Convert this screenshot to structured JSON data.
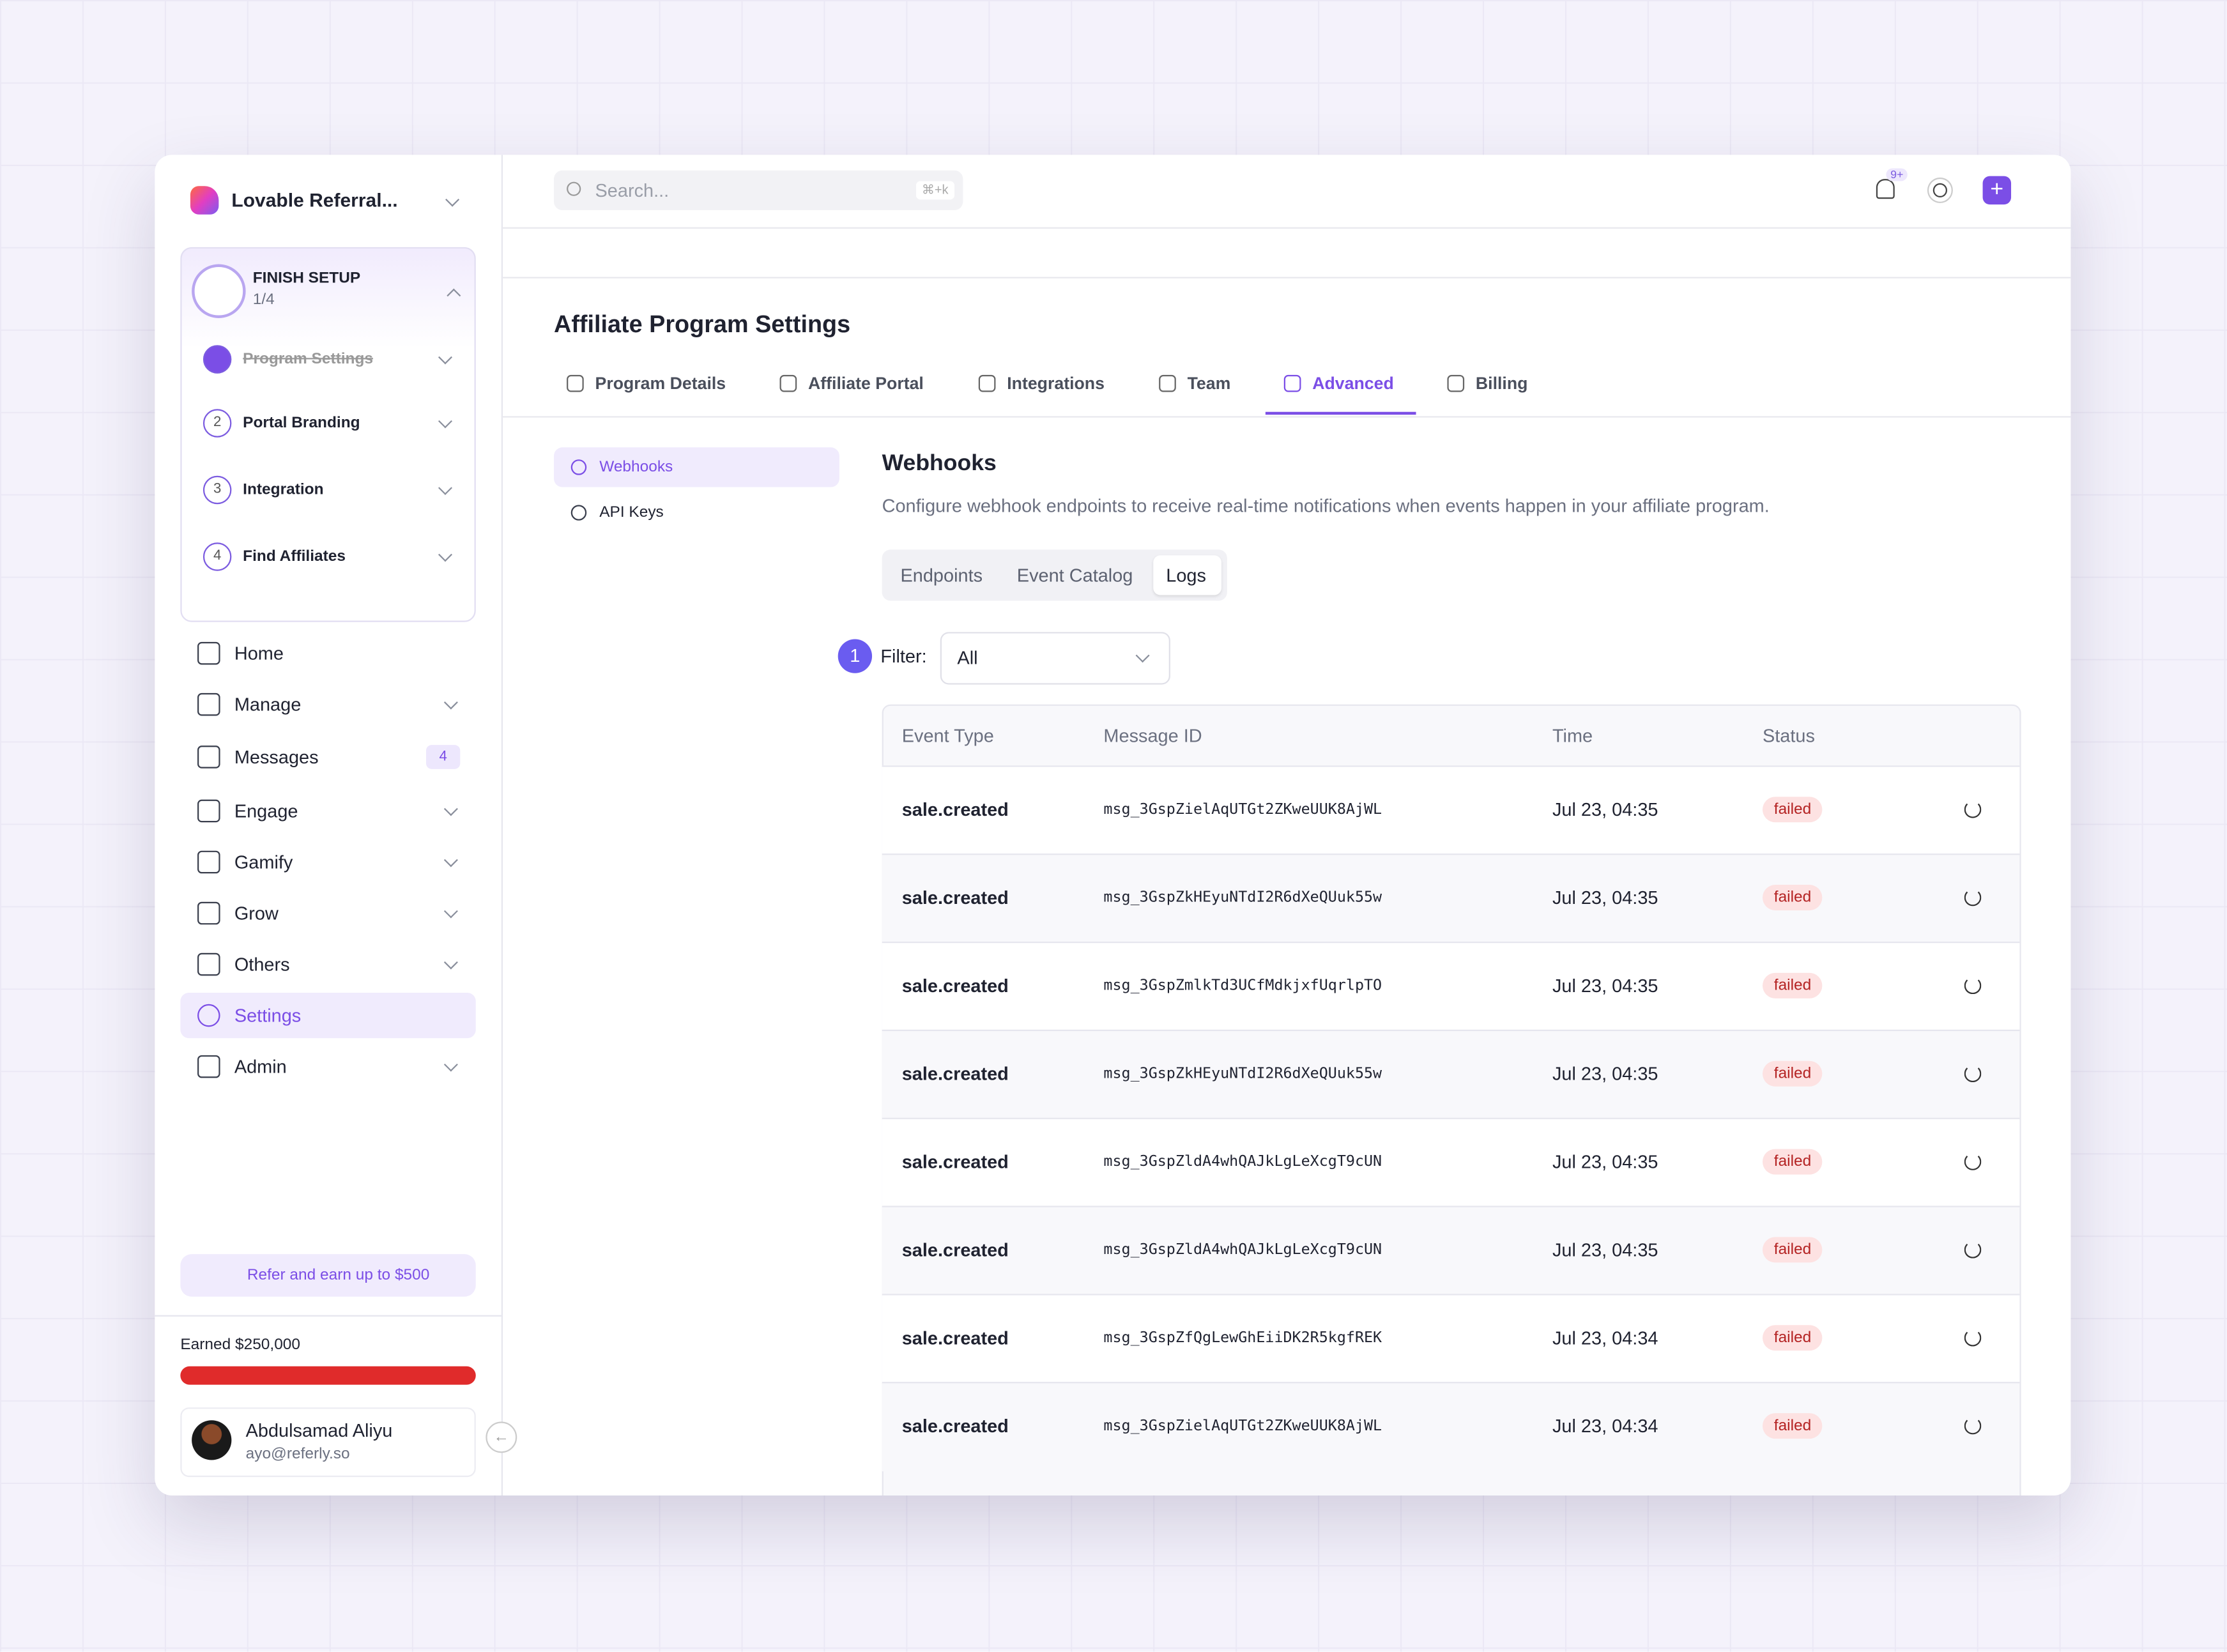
{
  "sidebar": {
    "workspace": "Lovable Referral...",
    "setup": {
      "title": "FINISH SETUP",
      "progress": "1/4",
      "steps": [
        {
          "label": "Program Settings"
        },
        {
          "number": "2",
          "label": "Portal Branding"
        },
        {
          "number": "3",
          "label": "Integration"
        },
        {
          "number": "4",
          "label": "Find Affiliates"
        }
      ]
    },
    "nav": [
      {
        "label": "Home"
      },
      {
        "label": "Manage"
      },
      {
        "label": "Messages",
        "badge": "4"
      },
      {
        "label": "Engage"
      },
      {
        "label": "Gamify"
      },
      {
        "label": "Grow"
      },
      {
        "label": "Others"
      },
      {
        "label": "Settings"
      },
      {
        "label": "Admin"
      }
    ],
    "refer": "Refer and earn up to $500",
    "earned": "Earned $250,000",
    "user": {
      "name": "Abdulsamad Aliyu",
      "email": "ayo@referly.so"
    }
  },
  "header": {
    "search": "Search...",
    "shortcut": "⌘+k",
    "notifications": "9+"
  },
  "page": {
    "title": "Affiliate Program Settings",
    "tabs": [
      "Program Details",
      "Affiliate Portal",
      "Integrations",
      "Team",
      "Advanced",
      "Billing"
    ],
    "subnav": [
      "Webhooks",
      "API Keys"
    ],
    "section": {
      "title": "Webhooks",
      "description": "Configure webhook endpoints to receive real-time notifications when events happen in your affiliate program.",
      "subtabs": [
        "Endpoints",
        "Event Catalog",
        "Logs"
      ],
      "marker": "1",
      "filter_label": "Filter:",
      "filter_value": "All"
    }
  },
  "table": {
    "columns": [
      "Event Type",
      "Message ID",
      "Time",
      "Status"
    ],
    "rows": [
      [
        "sale.created",
        "msg_3GspZielAqUTGt2ZKweUUK8AjWL",
        "Jul 23, 04:35",
        "failed"
      ],
      [
        "sale.created",
        "msg_3GspZkHEyuNTdI2R6dXeQUuk55w",
        "Jul 23, 04:35",
        "failed"
      ],
      [
        "sale.created",
        "msg_3GspZmlkTd3UCfMdkjxfUqrlpTO",
        "Jul 23, 04:35",
        "failed"
      ],
      [
        "sale.created",
        "msg_3GspZkHEyuNTdI2R6dXeQUuk55w",
        "Jul 23, 04:35",
        "failed"
      ],
      [
        "sale.created",
        "msg_3GspZldA4whQAJkLgLeXcgT9cUN",
        "Jul 23, 04:35",
        "failed"
      ],
      [
        "sale.created",
        "msg_3GspZldA4whQAJkLgLeXcgT9cUN",
        "Jul 23, 04:35",
        "failed"
      ],
      [
        "sale.created",
        "msg_3GspZfQgLewGhEiiDK2R5kgfREK",
        "Jul 23, 04:34",
        "failed"
      ],
      [
        "sale.created",
        "msg_3GspZielAqUTGt2ZKweUUK8AjWL",
        "Jul 23, 04:34",
        "failed"
      ]
    ]
  }
}
